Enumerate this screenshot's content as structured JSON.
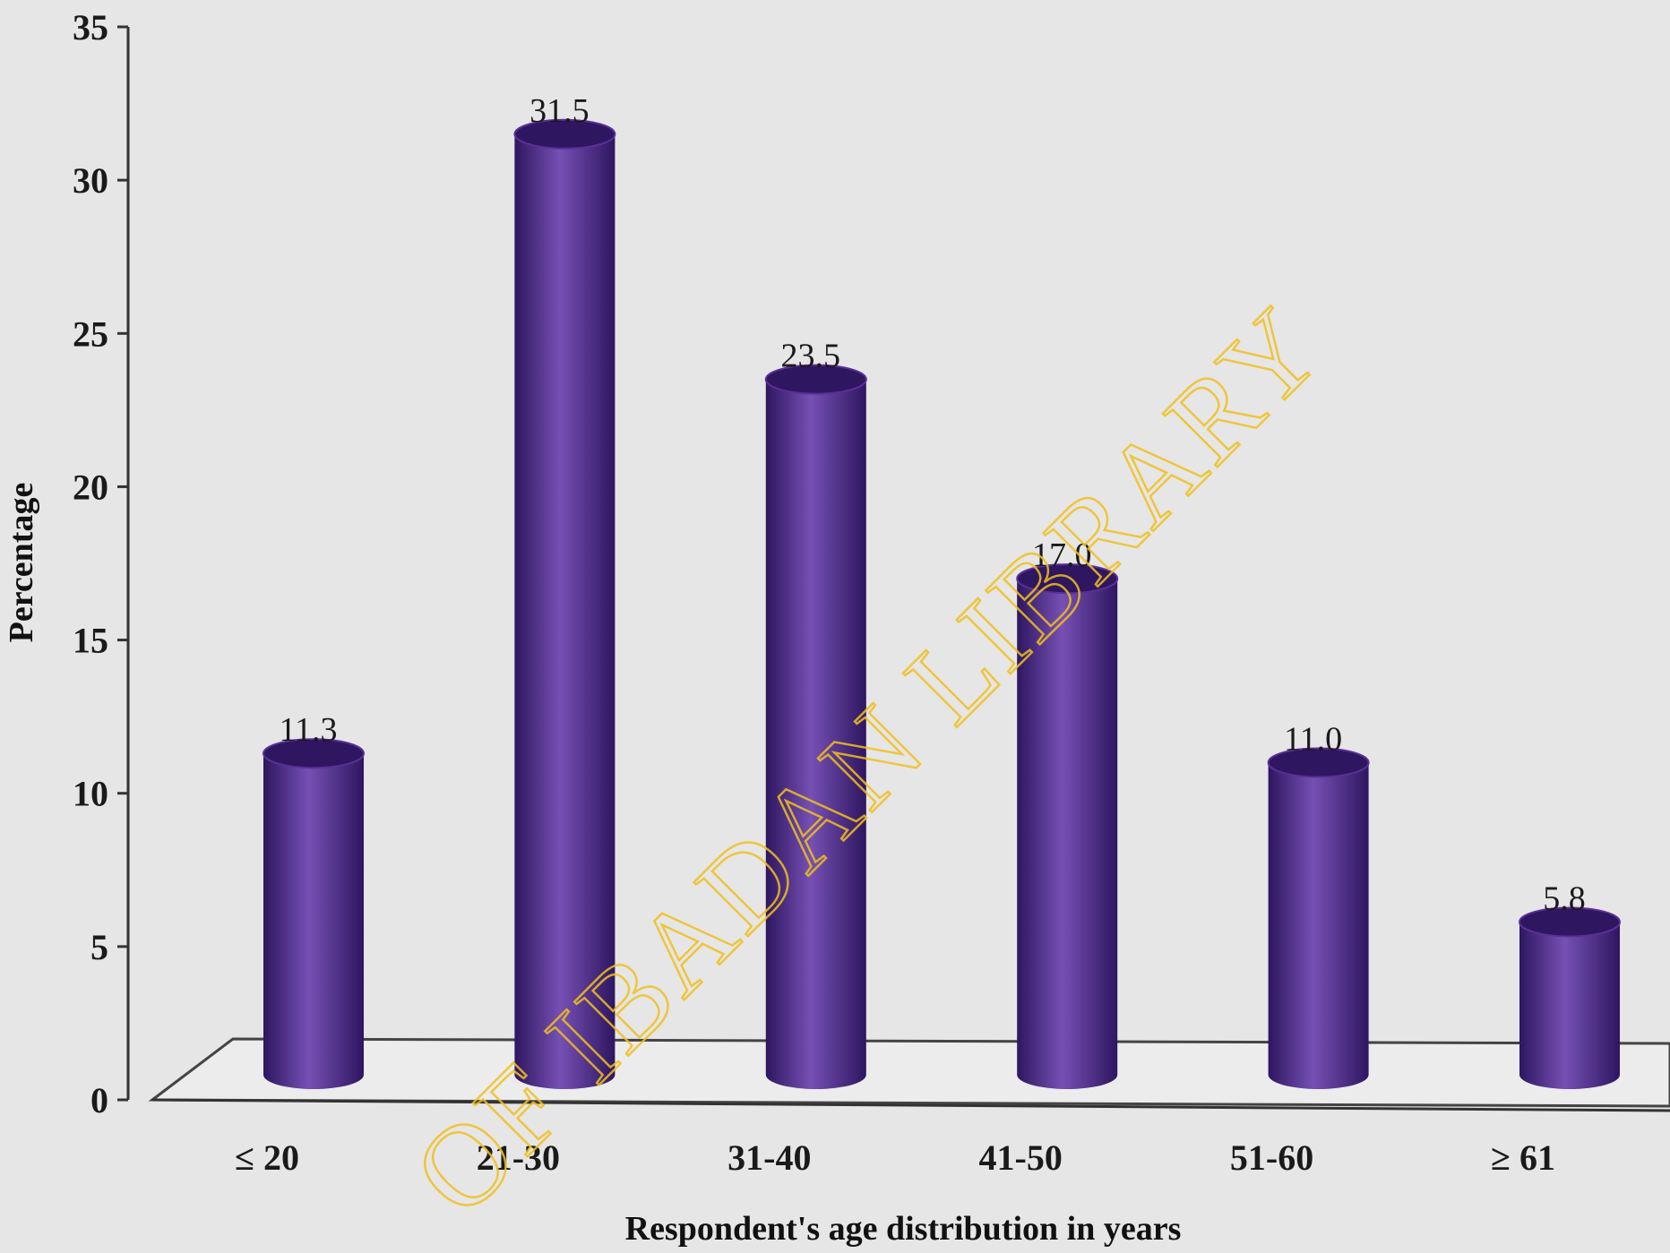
{
  "chart_data": {
    "type": "bar",
    "title": "",
    "xlabel": "Respondent's age distribution in years",
    "ylabel": "Percentage",
    "categories": [
      "≤ 20",
      "21-30",
      "31-40",
      "41-50",
      "51-60",
      "≥ 61"
    ],
    "values": [
      11.3,
      31.5,
      23.5,
      17.0,
      11.0,
      5.8
    ],
    "data_labels": [
      "11.3",
      "31.5",
      "23.5",
      "17.0",
      "11.0",
      "5.8"
    ],
    "ylim": [
      0,
      35
    ],
    "yticks": [
      0,
      5,
      10,
      15,
      20,
      25,
      30,
      35
    ],
    "grid": false,
    "legend": "none",
    "style": "3d-cylinder",
    "bar_color": "#5b2f96",
    "bar_highlight": "#7650b4",
    "bar_shadow": "#2e1660"
  },
  "watermark": {
    "text": "OF IBADAN LIBRARY",
    "color": "#f0c020"
  }
}
